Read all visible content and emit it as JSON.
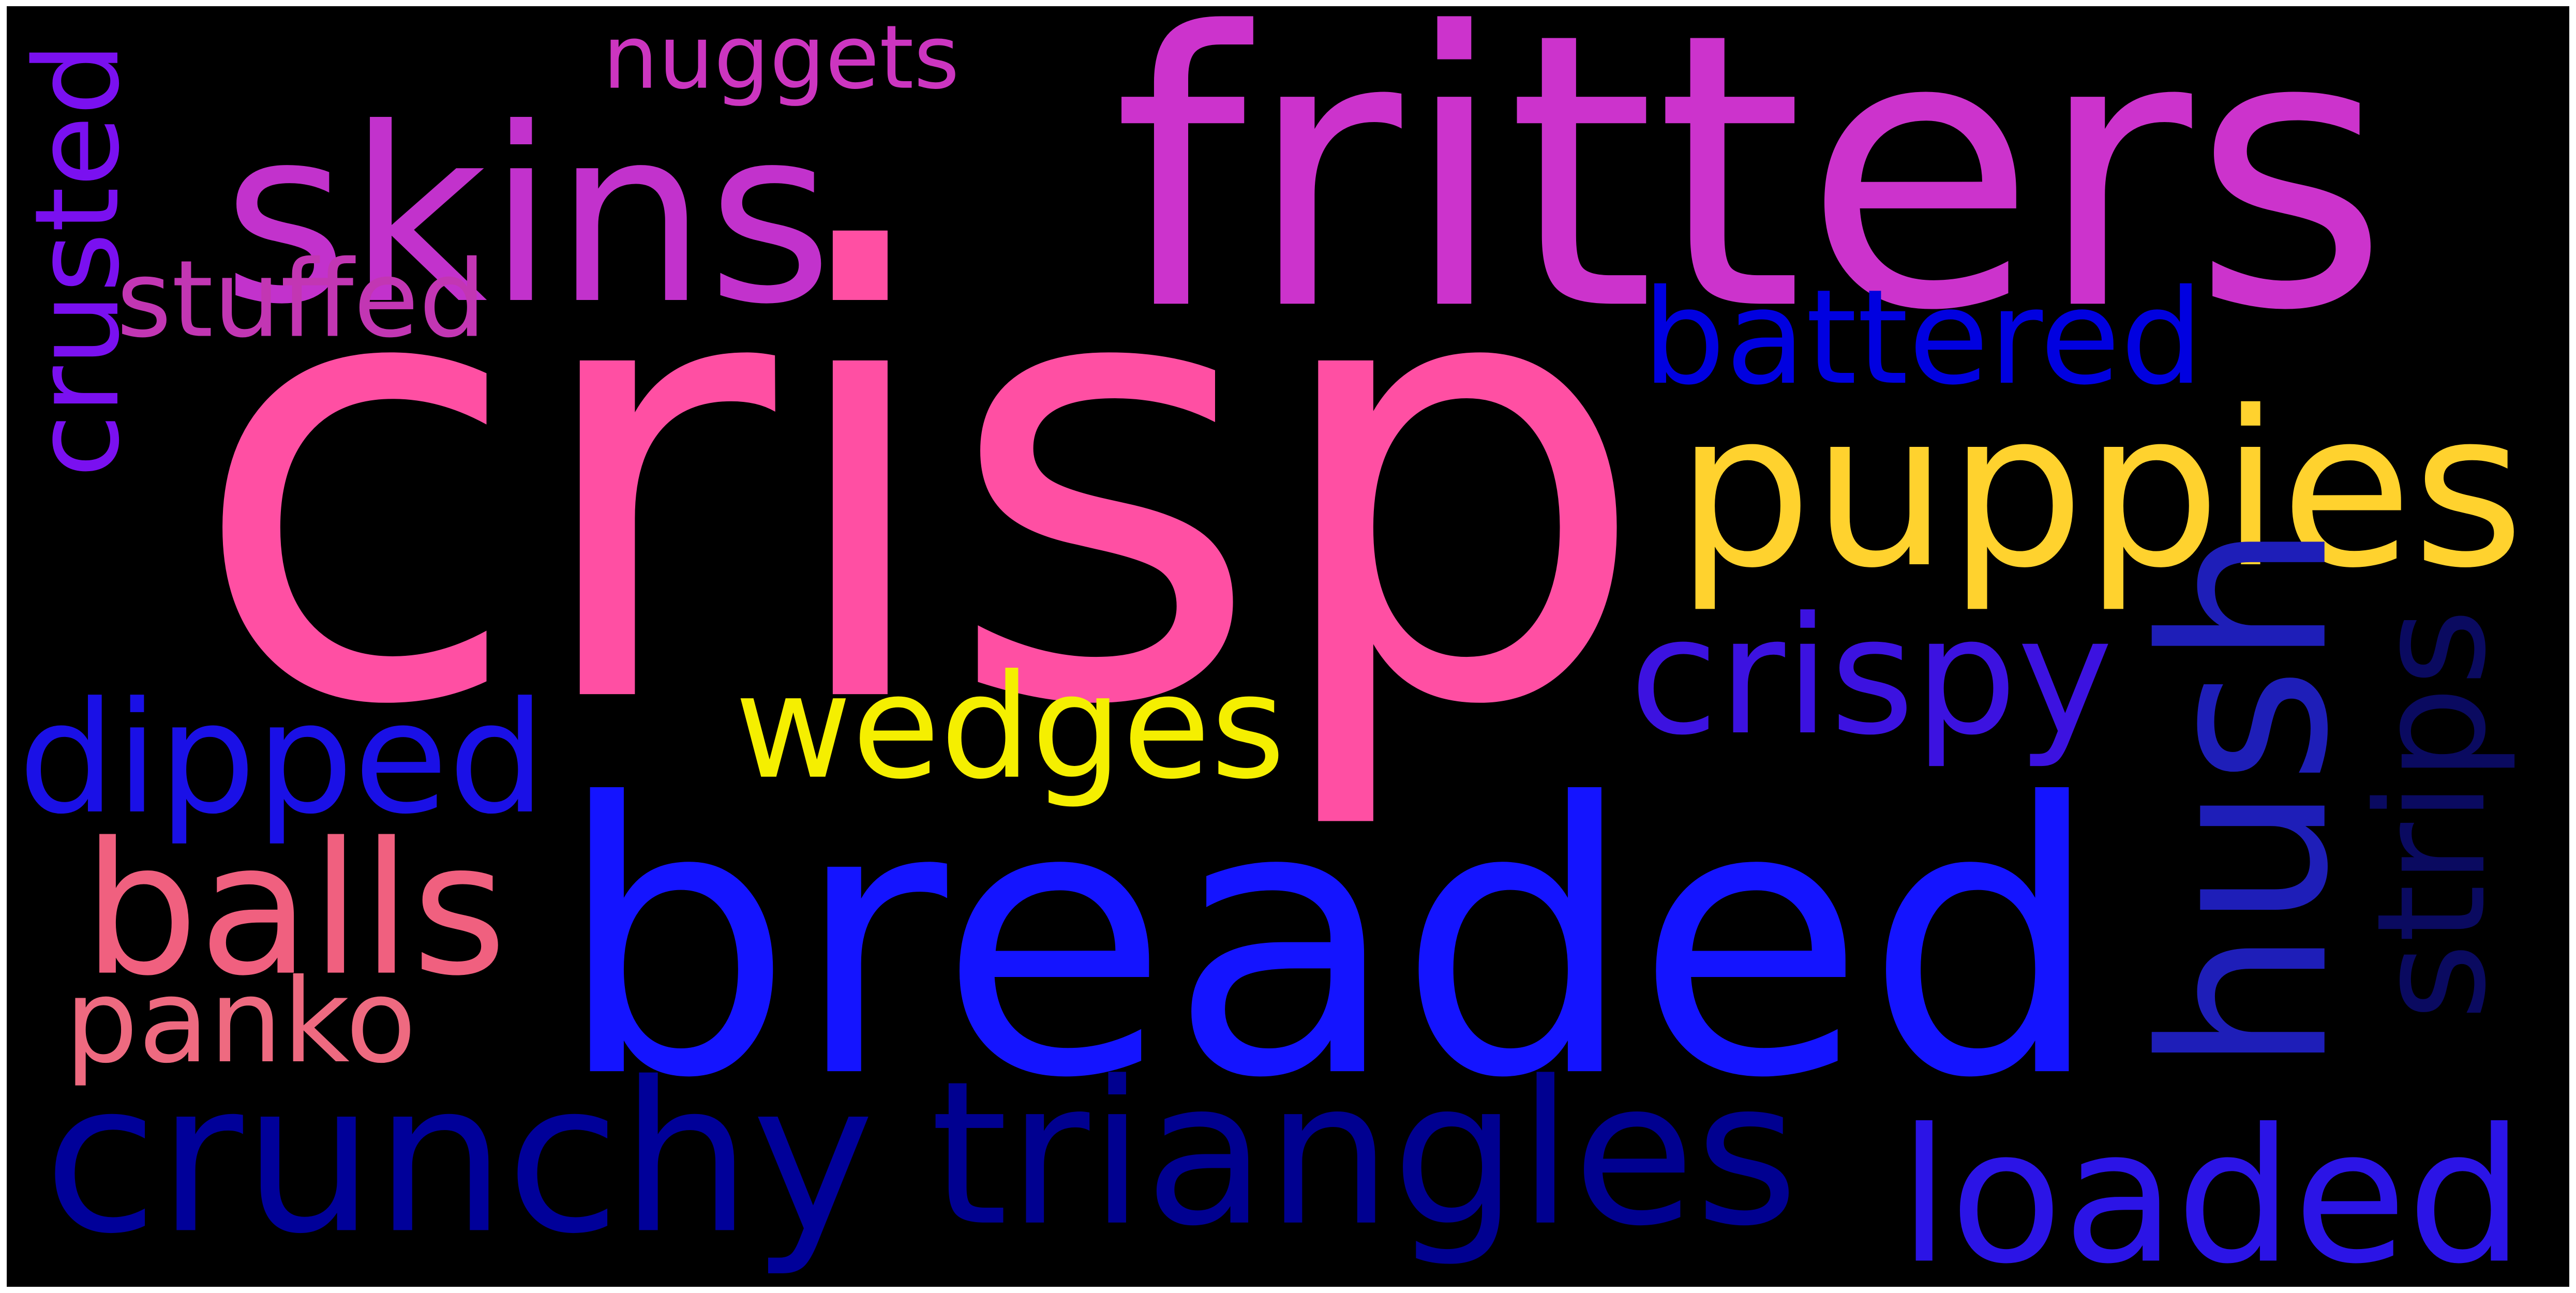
{
  "wordcloud": {
    "background": "#000000",
    "words": [
      {
        "text": "crisp",
        "color": "#ff4fa3",
        "orientation": "horizontal"
      },
      {
        "text": "breaded",
        "color": "#1414ff",
        "orientation": "horizontal"
      },
      {
        "text": "fritters",
        "color": "#cc33cc",
        "orientation": "horizontal"
      },
      {
        "text": "skins",
        "color": "#c232cc",
        "orientation": "horizontal"
      },
      {
        "text": "puppies",
        "color": "#ffd22e",
        "orientation": "horizontal"
      },
      {
        "text": "hush",
        "color": "#1e1eb8",
        "orientation": "vertical"
      },
      {
        "text": "crunchy",
        "color": "#000099",
        "orientation": "horizontal"
      },
      {
        "text": "triangles",
        "color": "#000090",
        "orientation": "horizontal"
      },
      {
        "text": "loaded",
        "color": "#2b14e6",
        "orientation": "horizontal"
      },
      {
        "text": "dipped",
        "color": "#1a10e6",
        "orientation": "horizontal"
      },
      {
        "text": "wedges",
        "color": "#f5ef00",
        "orientation": "horizontal"
      },
      {
        "text": "crispy",
        "color": "#3c12e0",
        "orientation": "horizontal"
      },
      {
        "text": "balls",
        "color": "#f0607f",
        "orientation": "horizontal"
      },
      {
        "text": "panko",
        "color": "#ee6a80",
        "orientation": "horizontal"
      },
      {
        "text": "strips",
        "color": "#0a0a60",
        "orientation": "vertical"
      },
      {
        "text": "battered",
        "color": "#0000e0",
        "orientation": "horizontal"
      },
      {
        "text": "crusted",
        "color": "#7a10f0",
        "orientation": "vertical"
      },
      {
        "text": "stuffed",
        "color": "#c236b3",
        "orientation": "horizontal"
      },
      {
        "text": "nuggets",
        "color": "#cc35c0",
        "orientation": "horizontal"
      }
    ]
  }
}
